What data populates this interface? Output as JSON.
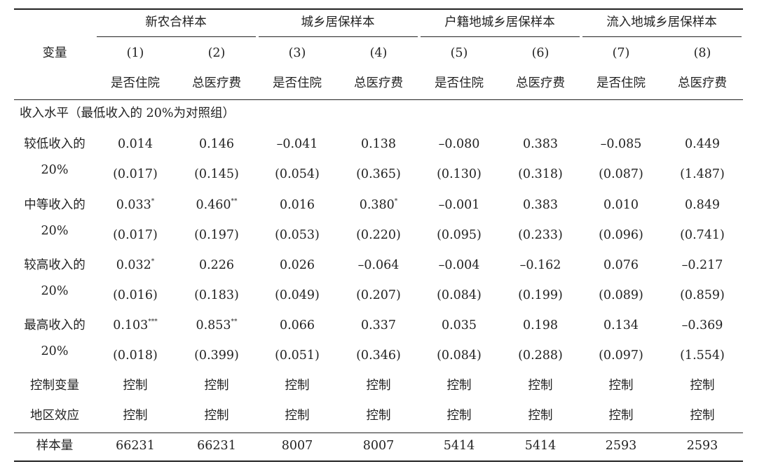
{
  "table": {
    "variable_header": "变量",
    "groups": [
      "新农合样本",
      "城乡居保样本",
      "户籍地城乡居保样本",
      "流入地城乡居保样本"
    ],
    "col_numbers": [
      "(1)",
      "(2)",
      "(3)",
      "(4)",
      "(5)",
      "(6)",
      "(7)",
      "(8)"
    ],
    "col_names": [
      "是否住院",
      "总医疗费",
      "是否住院",
      "总医疗费",
      "是否住院",
      "总医疗费",
      "是否住院",
      "总医疗费"
    ],
    "section_title": "收入水平（最低收入的 20%为对照组）",
    "rows": [
      {
        "label_line1": "较低收入的",
        "label_line2": "20%",
        "coef": [
          "0.014",
          "0.146",
          "–0.041",
          "0.138",
          "–0.080",
          "0.383",
          "–0.085",
          "0.449"
        ],
        "stars": [
          "",
          "",
          "",
          "",
          "",
          "",
          "",
          ""
        ],
        "se": [
          "(0.017)",
          "(0.145)",
          "(0.054)",
          "(0.365)",
          "(0.130)",
          "(0.318)",
          "(0.087)",
          "(1.487)"
        ]
      },
      {
        "label_line1": "中等收入的",
        "label_line2": "20%",
        "coef": [
          "0.033",
          "0.460",
          "0.016",
          "0.380",
          "–0.001",
          "0.383",
          "0.010",
          "0.849"
        ],
        "stars": [
          "*",
          "**",
          "",
          "*",
          "",
          "",
          "",
          ""
        ],
        "se": [
          "(0.017)",
          "(0.197)",
          "(0.053)",
          "(0.220)",
          "(0.095)",
          "(0.233)",
          "(0.096)",
          "(0.741)"
        ]
      },
      {
        "label_line1": "较高收入的",
        "label_line2": "20%",
        "coef": [
          "0.032",
          "0.226",
          "0.026",
          "–0.064",
          "–0.004",
          "–0.162",
          "0.076",
          "–0.217"
        ],
        "stars": [
          "*",
          "",
          "",
          "",
          "",
          "",
          "",
          ""
        ],
        "se": [
          "(0.016)",
          "(0.183)",
          "(0.049)",
          "(0.207)",
          "(0.084)",
          "(0.199)",
          "(0.089)",
          "(0.859)"
        ]
      },
      {
        "label_line1": "最高收入的",
        "label_line2": "20%",
        "coef": [
          "0.103",
          "0.853",
          "0.066",
          "0.337",
          "0.035",
          "0.198",
          "0.134",
          "–0.369"
        ],
        "stars": [
          "***",
          "**",
          "",
          "",
          "",
          "",
          "",
          ""
        ],
        "se": [
          "(0.018)",
          "(0.399)",
          "(0.051)",
          "(0.346)",
          "(0.084)",
          "(0.288)",
          "(0.097)",
          "(1.554)"
        ]
      }
    ],
    "controls": [
      {
        "label": "控制变量",
        "values": [
          "控制",
          "控制",
          "控制",
          "控制",
          "控制",
          "控制",
          "控制",
          "控制"
        ]
      },
      {
        "label": "地区效应",
        "values": [
          "控制",
          "控制",
          "控制",
          "控制",
          "控制",
          "控制",
          "控制",
          "控制"
        ]
      }
    ],
    "sample_size": {
      "label": "样本量",
      "values": [
        "66231",
        "66231",
        "8007",
        "8007",
        "5414",
        "5414",
        "2593",
        "2593"
      ]
    }
  }
}
